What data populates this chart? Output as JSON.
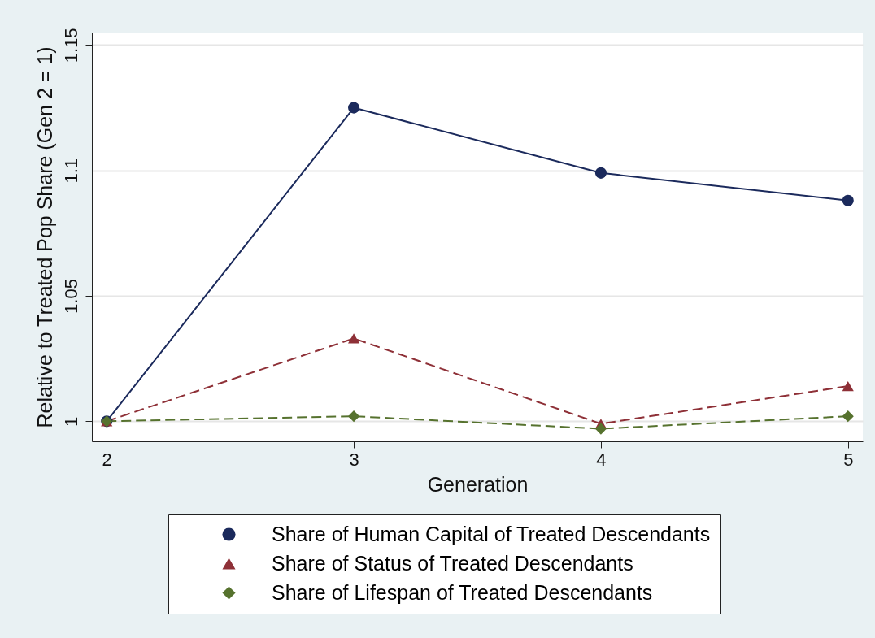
{
  "chart_data": {
    "type": "line",
    "xlabel": "Generation",
    "ylabel": "Relative to Treated Pop Share (Gen 2 = 1)",
    "x": [
      2,
      3,
      4,
      5
    ],
    "xlim": [
      1.94,
      5.06
    ],
    "xticks": [
      2,
      3,
      4,
      5
    ],
    "ylim": [
      0.992,
      1.155
    ],
    "yticks": [
      1,
      1.05,
      {
        "value": 1.1,
        "label": "1.1"
      },
      1.15
    ],
    "grid": "y",
    "legend": "bottom",
    "series": [
      {
        "name": "Share of Human Capital of Treated Descendants",
        "color": "#1b2a5c",
        "marker": "circle",
        "line_style": "solid",
        "values": [
          1,
          1.125,
          1.099,
          1.088
        ]
      },
      {
        "name": "Share of Status of Treated Descendants",
        "color": "#8e3037",
        "marker": "triangle",
        "line_style": "dashed",
        "values": [
          1,
          1.033,
          0.999,
          1.014
        ]
      },
      {
        "name": "Share of Lifespan of Treated Descendants",
        "color": "#56722e",
        "marker": "diamond",
        "line_style": "dashed",
        "values": [
          1,
          1.002,
          0.997,
          1.002
        ]
      }
    ]
  }
}
